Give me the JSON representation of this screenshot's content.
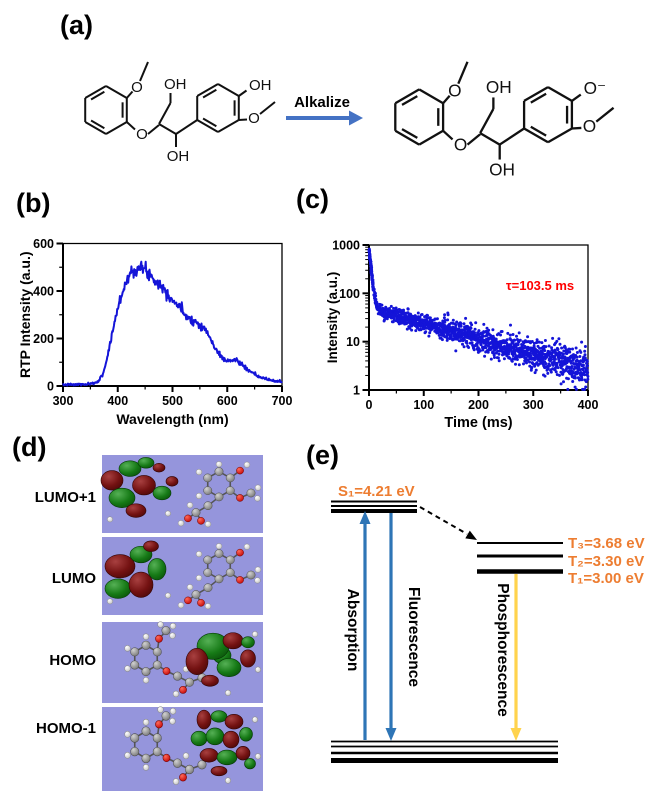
{
  "figure_labels": {
    "a": "(a)",
    "b": "(b)",
    "c": "(c)",
    "d": "(d)",
    "e": "(e)"
  },
  "panel_a": {
    "reaction_arrow_label": "Alkalize",
    "arrow_color": "#4472C4",
    "atoms": {
      "oxygen": "O",
      "hydroxyl": "OH",
      "phenol_left": "OH",
      "phenolate_right": "O⁻"
    }
  },
  "chart_data": [
    {
      "panel": "b",
      "type": "line",
      "title": "",
      "xlabel": "Wavelength (nm)",
      "ylabel": "RTP Intensity (a.u.)",
      "xlim": [
        300,
        700
      ],
      "ylim": [
        0,
        600
      ],
      "xticks": [
        300,
        400,
        500,
        600,
        700
      ],
      "yticks": [
        0,
        200,
        400,
        600
      ],
      "x_minor_step": 50,
      "y_minor_step": 100,
      "grid": false,
      "line_color": "#1414D8",
      "noise": {
        "base": 2.2,
        "rel": 0.025,
        "seed": 7
      },
      "curve_anchors": {
        "x": [
          300,
          310,
          320,
          330,
          340,
          350,
          358,
          365,
          372,
          380,
          388,
          396,
          404,
          412,
          420,
          428,
          436,
          444,
          452,
          460,
          470,
          480,
          490,
          500,
          510,
          520,
          530,
          540,
          548,
          556,
          564,
          572,
          580,
          590,
          600,
          608,
          614,
          620,
          628,
          636,
          645,
          655,
          665,
          675,
          685,
          695,
          700
        ],
        "y": [
          5,
          6,
          5,
          7,
          6,
          8,
          12,
          22,
          45,
          110,
          200,
          290,
          360,
          420,
          462,
          487,
          497,
          492,
          488,
          466,
          445,
          420,
          395,
          362,
          340,
          310,
          287,
          272,
          262,
          248,
          222,
          185,
          150,
          122,
          105,
          106,
          112,
          103,
          88,
          70,
          55,
          42,
          33,
          27,
          22,
          19,
          18
        ]
      }
    },
    {
      "panel": "c",
      "type": "scatter",
      "title": "",
      "xlabel": "Time (ms)",
      "ylabel": "Intensity (a.u.)",
      "xlim": [
        0,
        400
      ],
      "ylog_lim": [
        1,
        1000
      ],
      "xticks": [
        0,
        100,
        200,
        300,
        400
      ],
      "yticks": [
        1,
        10,
        100,
        1000
      ],
      "x_minor_step": 50,
      "grid": false,
      "dot_color": "#1414D8",
      "annotation": {
        "text": "τ=103.5 ms",
        "color": "#FF0000"
      },
      "decay_model": {
        "A1": 850,
        "tau1_ms": 3.5,
        "A2": 48,
        "tau2_ms": 140,
        "n_points": 1500,
        "extra_early_points": 60,
        "log_noise_sigma_start": 0.05,
        "log_noise_sigma_end": 0.2,
        "seed": 11
      }
    }
  ],
  "panel_d": {
    "bg_color": "#9595DC",
    "orbitals": [
      {
        "label": "LUMO+1",
        "lobe_side": "left",
        "variant": 1
      },
      {
        "label": "LUMO",
        "lobe_side": "left",
        "variant": 0
      },
      {
        "label": "HOMO",
        "lobe_side": "right",
        "variant": 0
      },
      {
        "label": "HOMO-1",
        "lobe_side": "right",
        "variant": 1
      }
    ]
  },
  "panel_e": {
    "accent_color": "#ED7D31",
    "singlet_label": "S₁=4.21 eV",
    "triplet_labels": [
      "T₃=3.68 eV",
      "T₂=3.30 eV",
      "T₁=3.00 eV"
    ],
    "absorption_label": "Absorption",
    "fluorescence_label": "Fluorescence",
    "phosphorescence_label": "Phosphorescence",
    "arrow_blue": "#2E75B6",
    "arrow_yellow": "#FFD34D"
  }
}
